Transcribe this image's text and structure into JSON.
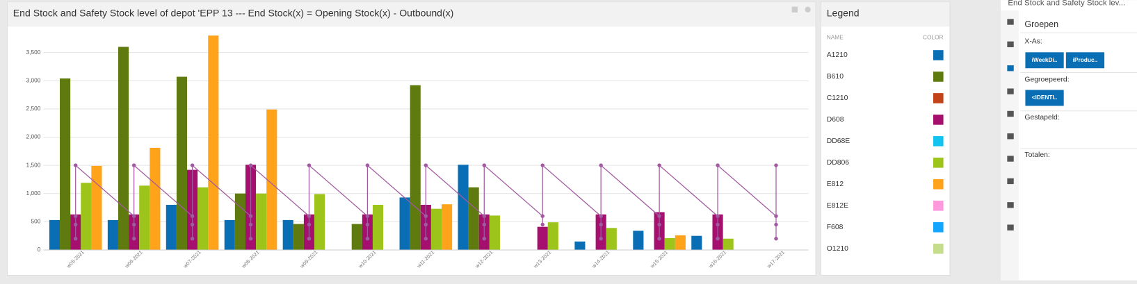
{
  "chart_data": {
    "type": "bar",
    "title": "End Stock and Safety Stock level of depot 'EPP 13 --- End Stock(x) = Opening Stock(x) - Outbound(x)",
    "categories": [
      "w05-2021",
      "w06-2021",
      "w07-2021",
      "w08-2021",
      "w09-2021",
      "w10-2021",
      "w11-2021",
      "w12-2021",
      "w13-2021",
      "w14-2021",
      "w15-2021",
      "w16-2021",
      "w17-2021"
    ],
    "series": [
      {
        "name": "A1210",
        "color": "#0a6eb4",
        "values": [
          530,
          530,
          800,
          530,
          530,
          null,
          930,
          1510,
          null,
          150,
          340,
          250,
          null
        ]
      },
      {
        "name": "B610",
        "color": "#5f7a0f",
        "values": [
          3040,
          3600,
          3070,
          1000,
          460,
          460,
          2920,
          1110,
          null,
          null,
          null,
          null,
          null
        ]
      },
      {
        "name": "C1210",
        "color": "#c2431a",
        "values": [
          null,
          null,
          null,
          null,
          null,
          null,
          null,
          null,
          null,
          null,
          null,
          null,
          null
        ]
      },
      {
        "name": "D608",
        "color": "#a5106e",
        "values": [
          630,
          630,
          1420,
          1510,
          630,
          630,
          800,
          630,
          410,
          630,
          670,
          630,
          null
        ]
      },
      {
        "name": "DD68E",
        "color": "#12c3f0",
        "values": [
          null,
          null,
          null,
          null,
          null,
          null,
          null,
          null,
          null,
          null,
          null,
          null,
          null
        ]
      },
      {
        "name": "DD806",
        "color": "#9dc41a",
        "values": [
          1190,
          1140,
          1110,
          1000,
          990,
          800,
          730,
          610,
          490,
          390,
          210,
          200,
          null
        ]
      },
      {
        "name": "E812",
        "color": "#ffa31a",
        "values": [
          1490,
          1810,
          3800,
          2490,
          null,
          null,
          810,
          null,
          null,
          null,
          260,
          null,
          null
        ]
      },
      {
        "name": "E812E",
        "color": "#ff99dd",
        "values": [
          null,
          null,
          null,
          null,
          null,
          null,
          null,
          null,
          null,
          null,
          null,
          null,
          null
        ]
      },
      {
        "name": "F608",
        "color": "#14a5ff",
        "values": [
          null,
          null,
          null,
          null,
          null,
          null,
          null,
          null,
          null,
          null,
          null,
          null,
          null
        ]
      },
      {
        "name": "O1210",
        "color": "#c4dc8c",
        "values": [
          null,
          null,
          null,
          null,
          null,
          null,
          null,
          null,
          null,
          null,
          null,
          null,
          null
        ]
      }
    ],
    "lines_color": "#a05aa0",
    "lines": [
      {
        "values": [
          1500,
          1500,
          1500,
          1500,
          1500,
          1500,
          1500,
          1500,
          1500,
          1500,
          1500,
          1500,
          1500
        ]
      },
      {
        "values": [
          600,
          600,
          600,
          600,
          600,
          600,
          600,
          600,
          600,
          600,
          600,
          600,
          600
        ]
      },
      {
        "values": [
          450,
          450,
          450,
          450,
          450,
          450,
          450,
          450,
          450,
          450,
          450,
          450,
          450
        ]
      },
      {
        "values": [
          200,
          200,
          200,
          200,
          200,
          200,
          200,
          200,
          null,
          200,
          200,
          200,
          200
        ]
      }
    ],
    "ylim": [
      0,
      3850
    ],
    "yticks": [
      0,
      500,
      {
        "value": 1000,
        "label": "1,000"
      },
      {
        "value": 1500,
        "label": "1,500"
      },
      {
        "value": 2000,
        "label": "2,000"
      },
      {
        "value": 2500,
        "label": "2,500"
      },
      {
        "value": 3000,
        "label": "3,000"
      },
      {
        "value": 3500,
        "label": "3,500"
      }
    ],
    "grid": true
  },
  "legend": {
    "title": "Legend",
    "name_header": "NAME",
    "color_header": "COLOR"
  },
  "side_panel": {
    "title": "End Stock and Safety Stock lev...",
    "heading": "Groepen",
    "x_axis_label": "X-As:",
    "x_axis_buttons": [
      "iWeekDi..",
      "iProduc.."
    ],
    "grouped_label": "Gegroepeerd:",
    "grouped_buttons": [
      "<IDENTI.."
    ],
    "stacked_label": "Gestapeld:",
    "totals_label": "Totalen:"
  }
}
